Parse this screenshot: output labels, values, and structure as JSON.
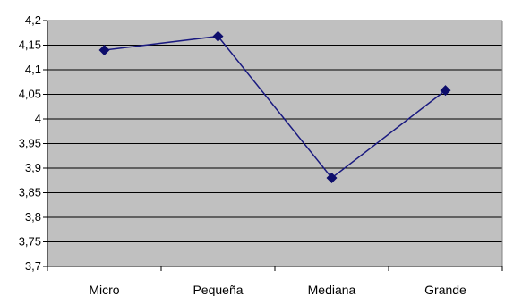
{
  "chart_data": {
    "type": "line",
    "title": "",
    "xlabel": "",
    "ylabel": "",
    "categories": [
      "Micro",
      "Pequeña",
      "Mediana",
      "Grande"
    ],
    "series": [
      {
        "values": [
          4.14,
          4.168,
          3.88,
          4.058
        ]
      }
    ],
    "ylim": [
      3.7,
      4.2
    ],
    "yticks": [
      "3,7",
      "3,75",
      "3,8",
      "3,85",
      "3,9",
      "3,95",
      "4",
      "4,05",
      "4,1",
      "4,15",
      "4,2"
    ],
    "grid": true,
    "legend": "none",
    "colors": {
      "plot_background": "#c0c0c0",
      "gridline": "#000000",
      "series_line": "#1a1a80",
      "marker": "#0d0d6b"
    },
    "marker": "diamond"
  }
}
